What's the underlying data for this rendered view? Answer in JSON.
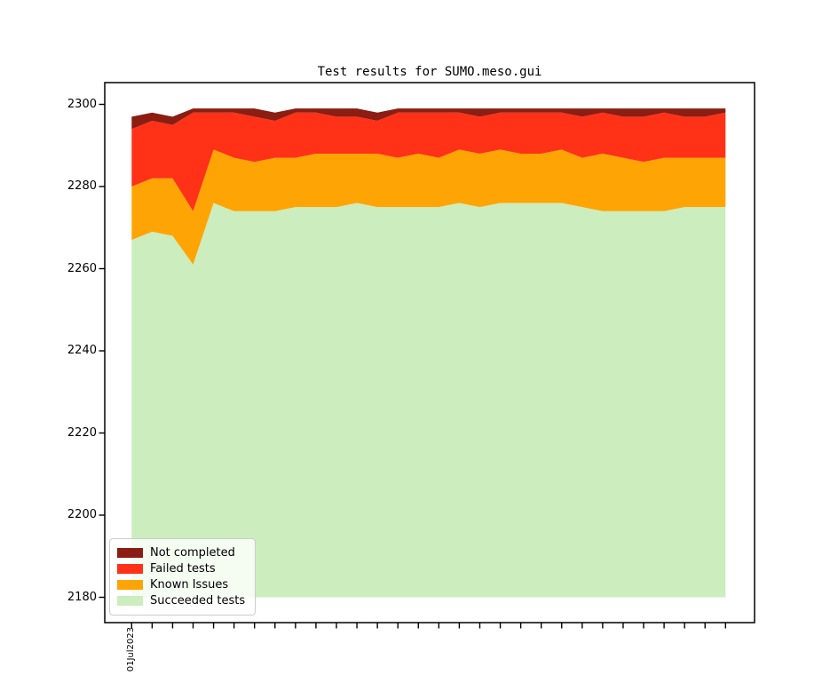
{
  "title": "Test results for SUMO.meso.gui",
  "y_axis": {
    "tick_labels": [
      "2300",
      "2280",
      "2260",
      "2240",
      "2220",
      "2200",
      "2180"
    ]
  },
  "x_axis": {
    "first_tick_label": "01Jul2023",
    "tick_count": 30
  },
  "legend": {
    "items": [
      {
        "label": "Not completed",
        "color": "#8B1D12"
      },
      {
        "label": "Failed tests",
        "color": "#FF3117"
      },
      {
        "label": "Known Issues",
        "color": "#FFA405"
      },
      {
        "label": "Succeeded tests",
        "color": "#CCEDBE"
      }
    ]
  },
  "chart_data": {
    "type": "area",
    "stacked": true,
    "title": "Test results for SUMO.meso.gui",
    "num_points": 30,
    "x_tick_labels_visible": [
      "01Jul2023"
    ],
    "xlabel": "",
    "ylabel": "",
    "ylim": [
      2174,
      2305.5
    ],
    "y_ticks": [
      2300,
      2280,
      2260,
      2240,
      2220,
      2200,
      2180
    ],
    "stack_baseline": 2180,
    "grid": false,
    "legend_position": "lower left",
    "series": [
      {
        "name": "Succeeded tests",
        "color": "#CCEDBE",
        "values": [
          2267,
          2269,
          2268,
          2261,
          2276,
          2274,
          2274,
          2274,
          2275,
          2275,
          2275,
          2276,
          2275,
          2275,
          2275,
          2275,
          2276,
          2275,
          2276,
          2276,
          2276,
          2276,
          2275,
          2274,
          2274,
          2274,
          2274,
          2275,
          2275,
          2275
        ]
      },
      {
        "name": "Known Issues",
        "color": "#FFA405",
        "values": [
          13,
          13,
          14,
          13,
          13,
          13,
          12,
          13,
          12,
          13,
          13,
          12,
          13,
          12,
          13,
          12,
          13,
          13,
          13,
          12,
          12,
          13,
          12,
          14,
          13,
          12,
          13,
          12,
          12,
          12
        ]
      },
      {
        "name": "Failed tests",
        "color": "#FF3117",
        "values": [
          14,
          14,
          13,
          24,
          9,
          11,
          11,
          9,
          11,
          10,
          9,
          9,
          8,
          11,
          10,
          11,
          9,
          9,
          9,
          10,
          10,
          9,
          10,
          10,
          10,
          11,
          11,
          10,
          10,
          11
        ]
      },
      {
        "name": "Not completed",
        "color": "#8B1D12",
        "values": [
          3,
          2,
          2,
          1,
          1,
          1,
          2,
          2,
          1,
          1,
          2,
          2,
          2,
          1,
          1,
          1,
          1,
          2,
          1,
          1,
          1,
          1,
          2,
          1,
          2,
          2,
          1,
          2,
          2,
          1
        ]
      }
    ]
  }
}
